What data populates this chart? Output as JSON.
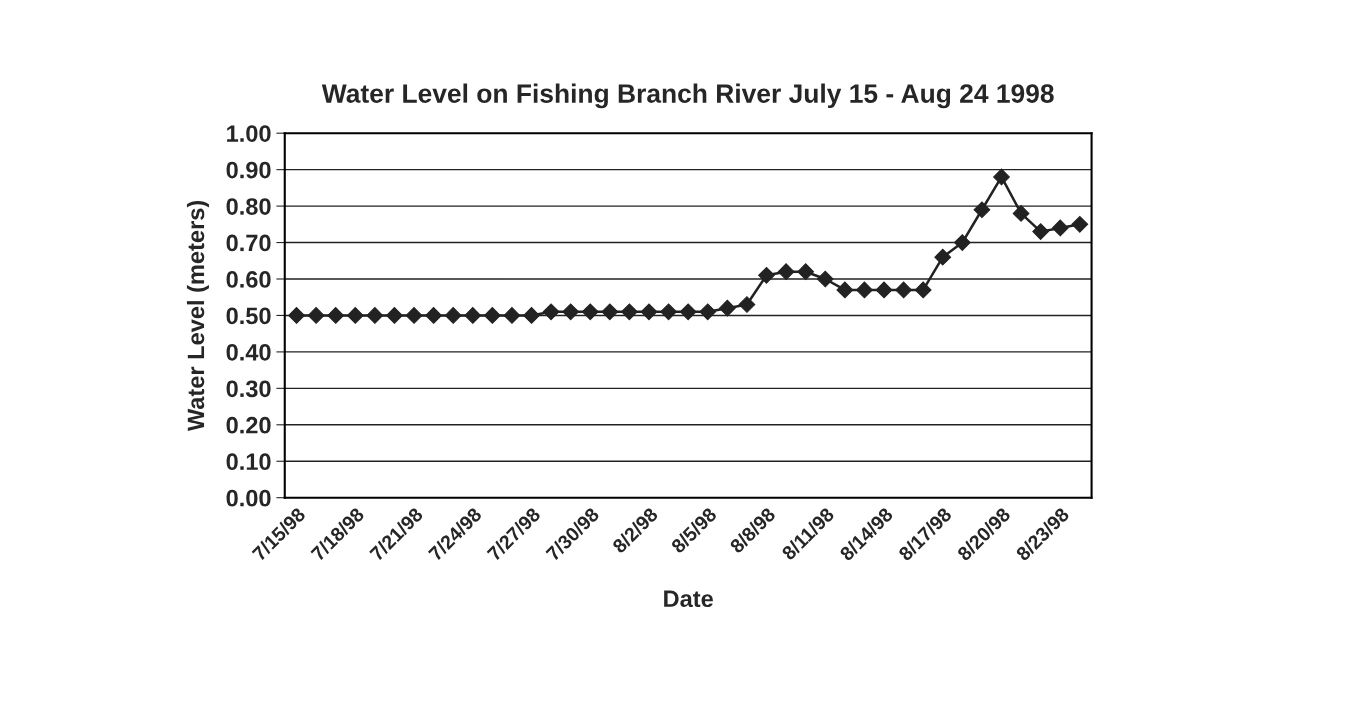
{
  "chart_data": {
    "type": "line",
    "title": "Water Level on Fishing Branch River July 15 - Aug 24 1998",
    "xlabel": "Date",
    "ylabel": "Water Level (meters)",
    "categories": [
      "7/15/98",
      null,
      null,
      "7/18/98",
      null,
      null,
      "7/21/98",
      null,
      null,
      "7/24/98",
      null,
      null,
      "7/27/98",
      null,
      null,
      "7/30/98",
      null,
      null,
      "8/2/98",
      null,
      null,
      "8/5/98",
      null,
      null,
      "8/8/98",
      null,
      null,
      "8/11/98",
      null,
      null,
      "8/14/98",
      null,
      null,
      "8/17/98",
      null,
      null,
      "8/20/98",
      null,
      null,
      "8/23/98",
      null
    ],
    "series": [
      {
        "color": "#222222",
        "values": [
          0.5,
          0.5,
          0.5,
          0.5,
          0.5,
          0.5,
          0.5,
          0.5,
          0.5,
          0.5,
          0.5,
          0.5,
          0.5,
          0.51,
          0.51,
          0.51,
          0.51,
          0.51,
          0.51,
          0.51,
          0.51,
          0.51,
          0.52,
          0.53,
          0.61,
          0.62,
          0.62,
          0.6,
          0.57,
          0.57,
          0.57,
          0.57,
          0.57,
          0.66,
          0.7,
          0.79,
          0.88,
          0.78,
          0.73,
          0.74,
          0.75
        ]
      }
    ],
    "ylim": [
      0,
      1
    ],
    "yticks": [
      {
        "value": 0,
        "label": "0.00"
      },
      {
        "value": 0.1,
        "label": "0.10"
      },
      {
        "value": 0.2,
        "label": "0.20"
      },
      {
        "value": 0.3,
        "label": "0.30"
      },
      {
        "value": 0.4,
        "label": "0.40"
      },
      {
        "value": 0.5,
        "label": "0.50"
      },
      {
        "value": 0.6,
        "label": "0.60"
      },
      {
        "value": 0.7,
        "label": "0.70"
      },
      {
        "value": 0.8,
        "label": "0.80"
      },
      {
        "value": 0.9,
        "label": "0.90"
      },
      {
        "value": 1,
        "label": "1.00"
      }
    ],
    "grid": "y",
    "marker": "diamond",
    "line_style": "solid"
  }
}
